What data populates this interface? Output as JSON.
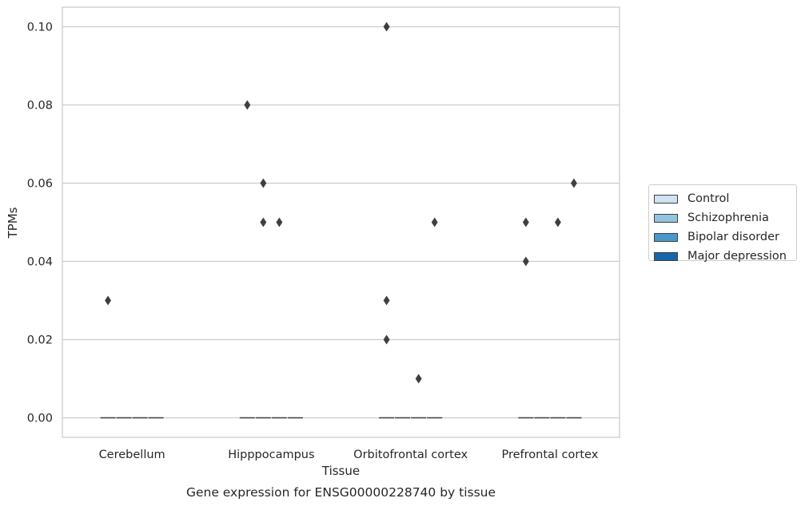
{
  "chart_data": {
    "type": "boxplot",
    "title": "Gene expression for ENSG00000228740 by tissue",
    "xlabel": "Tissue",
    "ylabel": "TPMs",
    "categories": [
      "Cerebellum",
      "Hipppocampus",
      "Orbitofrontal cortex",
      "Prefrontal cortex"
    ],
    "ylim": [
      -0.005,
      0.105
    ],
    "yticks": [
      0.0,
      0.02,
      0.04,
      0.06,
      0.08,
      0.1
    ],
    "ytick_labels": [
      "0.00",
      "0.02",
      "0.04",
      "0.06",
      "0.08",
      "0.10"
    ],
    "grid": true,
    "legend_position": "right",
    "series": [
      {
        "name": "Control",
        "color": "#cfe1f2"
      },
      {
        "name": "Schizophrenia",
        "color": "#93c4de"
      },
      {
        "name": "Bipolar disorder",
        "color": "#4a98c9"
      },
      {
        "name": "Major depression",
        "color": "#1764ab"
      }
    ],
    "medians": [
      [
        0,
        0,
        0,
        0
      ],
      [
        0,
        0,
        0,
        0
      ],
      [
        0,
        0,
        0,
        0
      ],
      [
        0,
        0,
        0,
        0
      ]
    ],
    "outliers": [
      {
        "category": "Cerebellum",
        "series": "Control",
        "value": 0.03
      },
      {
        "category": "Hipppocampus",
        "series": "Control",
        "value": 0.08
      },
      {
        "category": "Hipppocampus",
        "series": "Schizophrenia",
        "value": 0.06
      },
      {
        "category": "Hipppocampus",
        "series": "Schizophrenia",
        "value": 0.05
      },
      {
        "category": "Hipppocampus",
        "series": "Bipolar disorder",
        "value": 0.05
      },
      {
        "category": "Orbitofrontal cortex",
        "series": "Control",
        "value": 0.1
      },
      {
        "category": "Orbitofrontal cortex",
        "series": "Control",
        "value": 0.03
      },
      {
        "category": "Orbitofrontal cortex",
        "series": "Control",
        "value": 0.02
      },
      {
        "category": "Orbitofrontal cortex",
        "series": "Bipolar disorder",
        "value": 0.01
      },
      {
        "category": "Orbitofrontal cortex",
        "series": "Major depression",
        "value": 0.05
      },
      {
        "category": "Prefrontal cortex",
        "series": "Control",
        "value": 0.05
      },
      {
        "category": "Prefrontal cortex",
        "series": "Control",
        "value": 0.04
      },
      {
        "category": "Prefrontal cortex",
        "series": "Bipolar disorder",
        "value": 0.05
      },
      {
        "category": "Prefrontal cortex",
        "series": "Major depression",
        "value": 0.06
      }
    ]
  }
}
